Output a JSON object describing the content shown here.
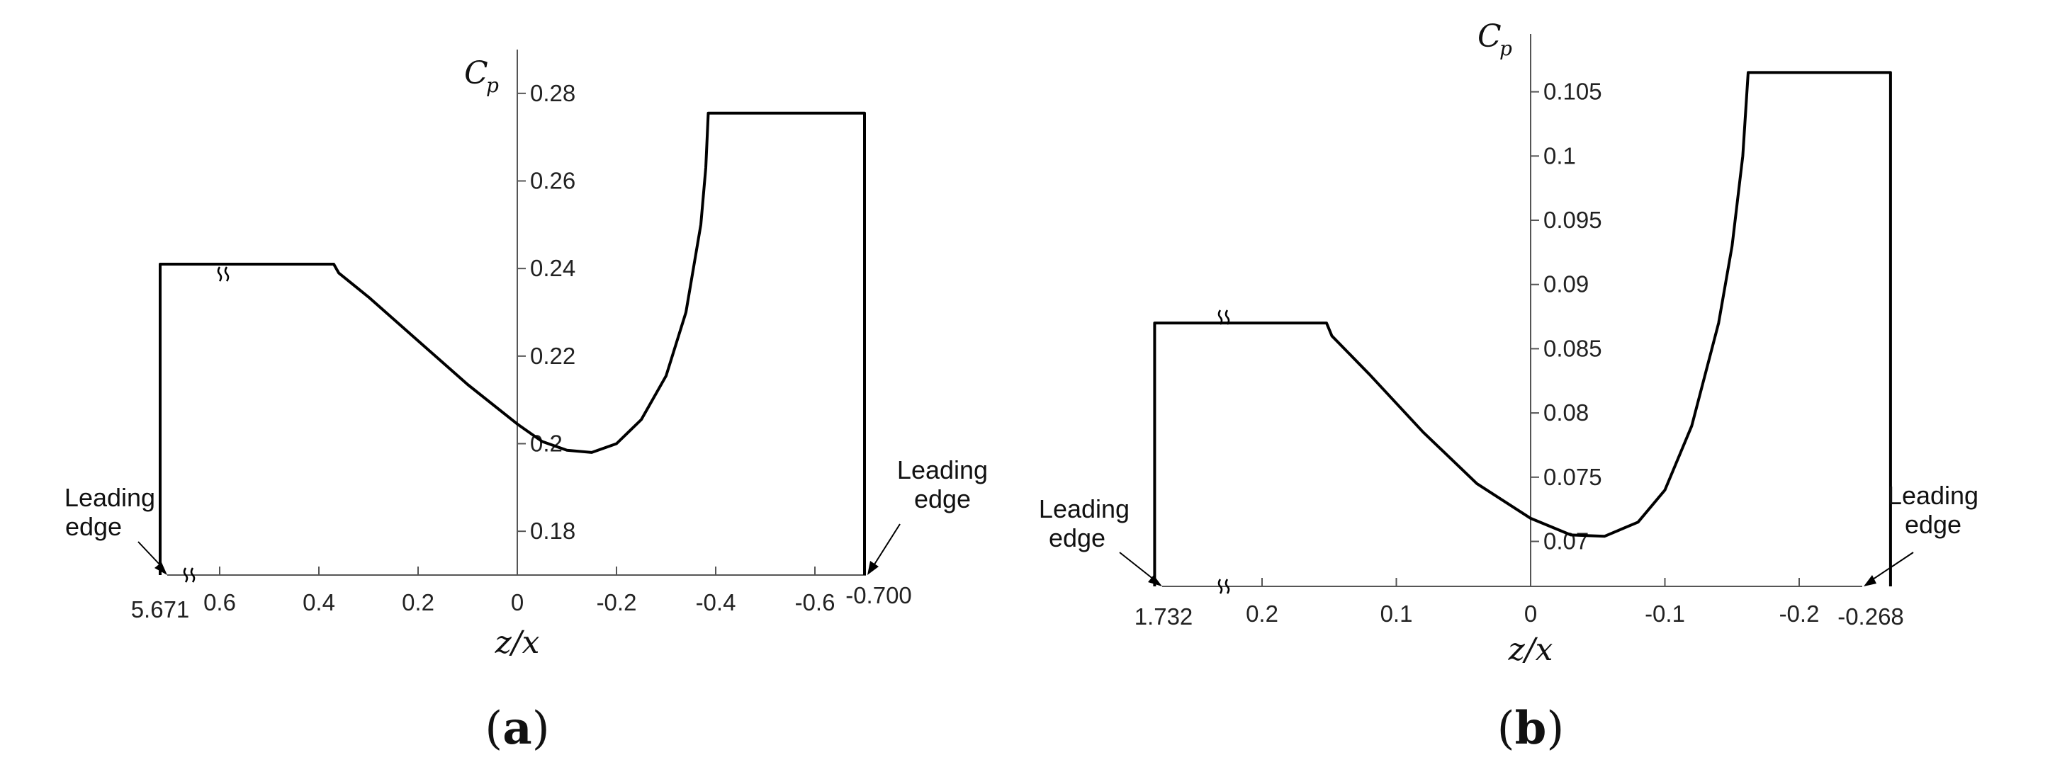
{
  "chart_data": [
    {
      "type": "line",
      "panel_label": "a",
      "xlabel": "z/x",
      "ylabel": "C_p",
      "ylabel_main": "C",
      "ylabel_sub": "p",
      "ylim": [
        0.17,
        0.29
      ],
      "y_ticks": [
        "0.18",
        "0.2",
        "0.22",
        "0.24",
        "0.26",
        "0.28"
      ],
      "x_ticks": [
        "0.6",
        "0.4",
        "0.2",
        "0",
        "-0.2",
        "-0.4",
        "-0.6"
      ],
      "x_end_labels": {
        "left": "5.671",
        "right": "-0.700"
      },
      "annotations": [
        {
          "text_line1": "Leading",
          "text_line2": "edge",
          "side": "left"
        },
        {
          "text_line1": "Leading",
          "text_line2": "edge",
          "side": "right"
        }
      ],
      "series": [
        {
          "points": [
            [
              0.72,
              0.17
            ],
            [
              0.72,
              0.241
            ],
            [
              0.5,
              0.241
            ],
            [
              0.4,
              0.241
            ],
            [
              0.37,
              0.241
            ],
            [
              0.36,
              0.239
            ],
            [
              0.3,
              0.2335
            ],
            [
              0.2,
              0.2235
            ],
            [
              0.1,
              0.2135
            ],
            [
              0.0,
              0.2045
            ],
            [
              -0.05,
              0.2005
            ],
            [
              -0.1,
              0.1985
            ],
            [
              -0.15,
              0.198
            ],
            [
              -0.2,
              0.2
            ],
            [
              -0.25,
              0.2055
            ],
            [
              -0.3,
              0.2155
            ],
            [
              -0.34,
              0.23
            ],
            [
              -0.37,
              0.25
            ],
            [
              -0.38,
              0.263
            ],
            [
              -0.385,
              0.2755
            ],
            [
              -0.7,
              0.2755
            ],
            [
              -0.7,
              0.17
            ]
          ]
        }
      ]
    },
    {
      "type": "line",
      "panel_label": "b",
      "xlabel": "z/x",
      "ylabel": "C_p",
      "ylabel_main": "C",
      "ylabel_sub": "p",
      "ylim": [
        0.0665,
        0.1095
      ],
      "y_ticks": [
        "0.07",
        "0.075",
        "0.08",
        "0.085",
        "0.09",
        "0.095",
        "0.1",
        "0.105"
      ],
      "x_ticks": [
        "0.2",
        "0.1",
        "0",
        "-0.1",
        "-0.2"
      ],
      "x_end_labels": {
        "left": "1.732",
        "right": "-0.268"
      },
      "annotations": [
        {
          "text_line1": "Leading",
          "text_line2": "edge",
          "side": "left"
        },
        {
          "text_line1": "Leading",
          "text_line2": "edge",
          "side": "right"
        }
      ],
      "series": [
        {
          "points": [
            [
              0.28,
              0.0665
            ],
            [
              0.28,
              0.087
            ],
            [
              0.2,
              0.087
            ],
            [
              0.16,
              0.087
            ],
            [
              0.152,
              0.087
            ],
            [
              0.148,
              0.086
            ],
            [
              0.12,
              0.083
            ],
            [
              0.08,
              0.0785
            ],
            [
              0.04,
              0.0745
            ],
            [
              0.0,
              0.0718
            ],
            [
              -0.03,
              0.0705
            ],
            [
              -0.055,
              0.0704
            ],
            [
              -0.08,
              0.0715
            ],
            [
              -0.1,
              0.074
            ],
            [
              -0.12,
              0.079
            ],
            [
              -0.14,
              0.087
            ],
            [
              -0.15,
              0.093
            ],
            [
              -0.158,
              0.1
            ],
            [
              -0.162,
              0.1065
            ],
            [
              -0.268,
              0.1065
            ],
            [
              -0.268,
              0.0665
            ]
          ]
        }
      ]
    }
  ]
}
